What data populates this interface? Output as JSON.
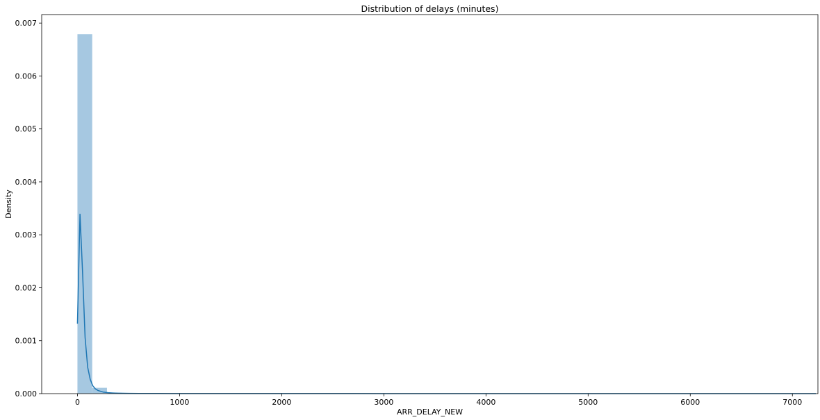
{
  "chart_data": {
    "type": "bar",
    "title": "Distribution of delays (minutes)",
    "xlabel": "ARR_DELAY_NEW",
    "ylabel": "Density",
    "xlim": [
      -350,
      7250
    ],
    "ylim": [
      0,
      0.00716
    ],
    "grid": false,
    "x_ticks": [
      0,
      1000,
      2000,
      3000,
      4000,
      5000,
      6000,
      7000
    ],
    "y_ticks": [
      0,
      0.001,
      0.002,
      0.003,
      0.004,
      0.005,
      0.006,
      0.007
    ],
    "x_tick_labels": [
      "0",
      "1000",
      "2000",
      "3000",
      "4000",
      "5000",
      "6000",
      "7000"
    ],
    "y_tick_labels": [
      "0.000",
      "0.001",
      "0.002",
      "0.003",
      "0.004",
      "0.005",
      "0.006",
      "0.007"
    ],
    "histogram": {
      "bin_width": 144.6,
      "bins": [
        {
          "x0": 0,
          "density": 0.00679
        },
        {
          "x0": 144.6,
          "density": 0.00011
        },
        {
          "x0": 289.2,
          "density": 1.5e-05
        },
        {
          "x0": 433.8,
          "density": 5e-06
        }
      ],
      "color": "#a6c8e1"
    },
    "kde": {
      "color": "#1f77b4",
      "x": [
        0,
        25,
        50,
        75,
        100,
        125,
        150,
        175,
        200,
        250,
        300,
        350,
        400,
        450,
        500,
        600,
        700,
        800,
        900,
        1000,
        1500,
        2000,
        3000,
        4000,
        5000,
        6000,
        7000,
        7230
      ],
      "y": [
        0.00132,
        0.00339,
        0.0023,
        0.00106,
        0.0005,
        0.00027,
        0.00015,
        9e-05,
        6e-05,
        3e-05,
        1.8e-05,
        1.2e-05,
        8e-06,
        6e-06,
        5e-06,
        4e-06,
        3e-06,
        2.5e-06,
        2e-06,
        1.8e-06,
        1.2e-06,
        1e-06,
        8e-07,
        6e-07,
        5e-07,
        4e-07,
        3e-07,
        3e-07
      ]
    }
  }
}
